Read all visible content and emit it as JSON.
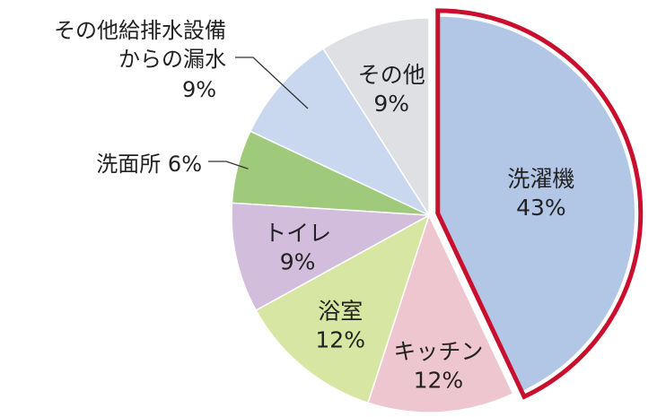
{
  "chart_data": {
    "type": "pie",
    "slices": [
      {
        "label": "洗濯機",
        "value": 43,
        "display": "43%",
        "color": "#b2c6e6",
        "highlighted": true
      },
      {
        "label": "キッチン",
        "value": 12,
        "display": "12%",
        "color": "#eec6cf"
      },
      {
        "label": "浴室",
        "value": 12,
        "display": "12%",
        "color": "#d8e6a3"
      },
      {
        "label": "トイレ",
        "value": 9,
        "display": "9%",
        "color": "#d2bddc"
      },
      {
        "label": "洗面所",
        "value": 6,
        "display": "6%",
        "color": "#9fc97b"
      },
      {
        "label": "その他給排水設備からの漏水",
        "value": 9,
        "display": "9%",
        "color": "#c9d8ee"
      },
      {
        "label": "その他",
        "value": 9,
        "display": "9%",
        "color": "#dfe0e4"
      }
    ],
    "outside_labels": {
      "leak_line1": "その他給排水設備",
      "leak_line2": "からの漏水",
      "leak_value": "9%",
      "washroom_text": "洗面所 6%"
    },
    "highlight_color": "#c8102e"
  }
}
